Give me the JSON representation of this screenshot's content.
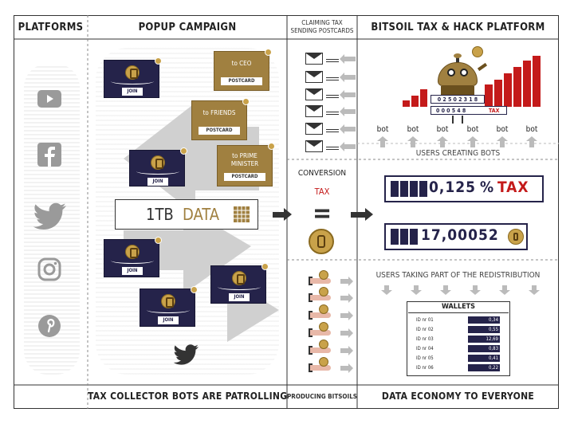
{
  "headers": {
    "platforms": "PLATFORMS",
    "popup": "POPUP CAMPAIGN",
    "claiming": "CLAIMING TAX\nSENDING POSTCARDS",
    "bitsoil": "BITSOIL TAX & HACK PLATFORM",
    "patrol": "TAX COLLECTOR BOTS ARE PATROLLING",
    "producing": "PRODUCING BITSOILS",
    "economy": "DATA ECONOMY TO EVERYONE"
  },
  "platform_icons": [
    "youtube-icon",
    "facebook-icon",
    "twitter-icon",
    "instagram-icon",
    "pinterest-icon"
  ],
  "cards": {
    "join": "JOIN"
  },
  "postcards": [
    {
      "to": "to CEO",
      "label": "POSTCARD"
    },
    {
      "to": "to FRIENDS",
      "label": "POSTCARD"
    },
    {
      "to": "to PRIME\nMINISTER",
      "label": "POSTCARD"
    }
  ],
  "data_box": {
    "size": "1TB",
    "word": "DATA"
  },
  "conversion": {
    "title": "CONVERSION",
    "tax": "TAX",
    "equals": "="
  },
  "counters": {
    "top_value": "0,125",
    "top_unit": "%",
    "top_tax": "TAX",
    "bottom_value": "17,00052"
  },
  "robot": {
    "counter_top": "0 2 5 0 2 3 1 8",
    "counter_bottom": "0 0 0 5 4 8",
    "tax": "TAX"
  },
  "bots": [
    "bot",
    "bot",
    "bot",
    "bot",
    "bot",
    "bot"
  ],
  "users_creating": "USERS CREATING BOTS",
  "users_redistribution": "USERS TAKING PART OF THE REDISTRIBUTION",
  "wallets": {
    "title": "WALLETS",
    "rows": [
      {
        "id": "ID nr 01",
        "value": "0,34"
      },
      {
        "id": "ID nr 02",
        "value": "0,55"
      },
      {
        "id": "ID nr 03",
        "value": "12,69"
      },
      {
        "id": "ID nr 04",
        "value": "0,83"
      },
      {
        "id": "ID nr 05",
        "value": "0,41"
      },
      {
        "id": "ID nr 06",
        "value": "0,22"
      }
    ]
  },
  "colors": {
    "navy": "#25234a",
    "gold": "#a08040",
    "red": "#c41a1a",
    "grey": "#bbbbbb"
  }
}
